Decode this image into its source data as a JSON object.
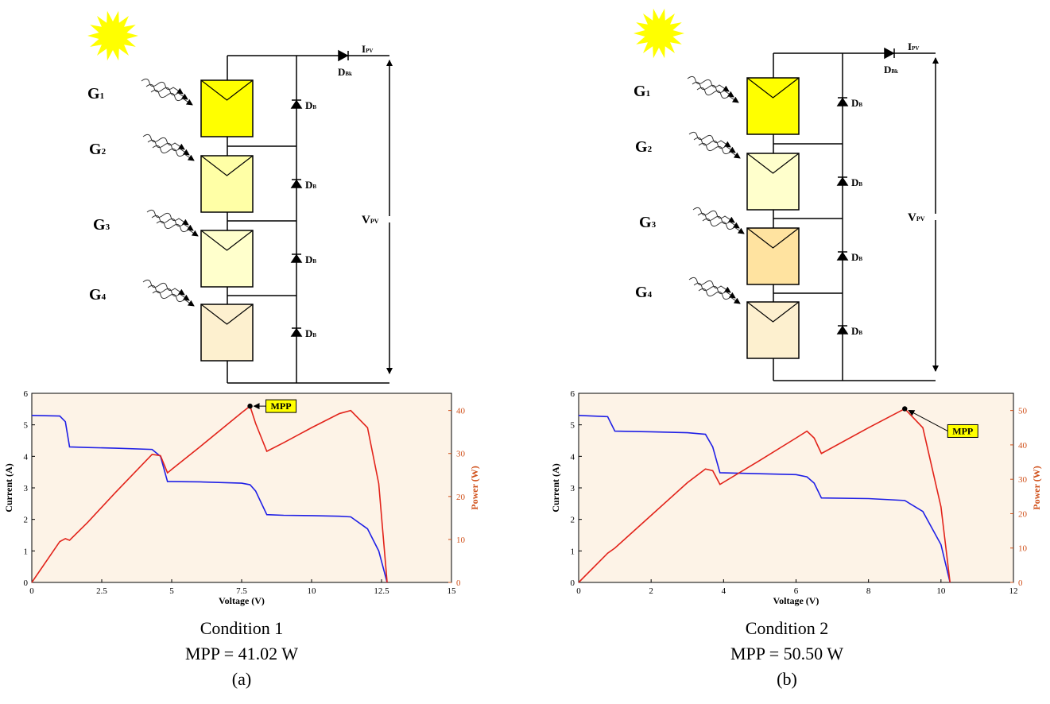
{
  "chart_data": [
    {
      "type": "line",
      "xlabel": "Voltage (V)",
      "ylabel": "Current (A)",
      "y2label": "Power (W)",
      "x": [
        0,
        1.0,
        1.2,
        1.35,
        2,
        3,
        4.3,
        4.6,
        4.85,
        5,
        6,
        7.5,
        7.8,
        8,
        8.4,
        9,
        10,
        11,
        11.4,
        12,
        12.4,
        12.7
      ],
      "series": [
        {
          "color": "#1f1fe6",
          "values": [
            5.3,
            5.28,
            5.1,
            4.3,
            4.28,
            4.26,
            4.22,
            4.0,
            3.2,
            3.2,
            3.19,
            3.15,
            3.1,
            2.9,
            2.15,
            2.13,
            2.12,
            2.1,
            2.08,
            1.7,
            1.0,
            0
          ]
        },
        {
          "color": "#e2231a",
          "axis": "y2",
          "values": [
            0,
            9.5,
            10.2,
            9.8,
            14,
            21,
            29.8,
            29.5,
            25.5,
            26.3,
            31.5,
            39.5,
            41.02,
            37,
            30.5,
            32.5,
            36,
            39.3,
            40,
            36,
            23,
            0
          ]
        }
      ],
      "xlim": [
        0,
        15
      ],
      "xticks": [
        0,
        2.5,
        5,
        7.5,
        10,
        12.5,
        15
      ],
      "ylim": [
        0,
        6
      ],
      "yticks": [
        0,
        1,
        2,
        3,
        4,
        5,
        6
      ],
      "y2lim": [
        0,
        44
      ],
      "y2ticks": [
        0,
        10,
        20,
        30,
        40
      ],
      "annotations": [
        {
          "text": "MPP",
          "x": 7.8,
          "y": 41.02
        }
      ]
    },
    {
      "type": "line",
      "xlabel": "Voltage (V)",
      "ylabel": "Current (A)",
      "y2label": "Power (W)",
      "x": [
        0,
        0.8,
        1.0,
        2,
        3,
        3.5,
        3.7,
        3.9,
        5,
        6,
        6.3,
        6.5,
        6.7,
        8,
        9,
        9.5,
        10,
        10.25
      ],
      "series": [
        {
          "color": "#1f1fe6",
          "values": [
            5.3,
            5.26,
            4.8,
            4.78,
            4.75,
            4.7,
            4.3,
            3.48,
            3.45,
            3.42,
            3.35,
            3.15,
            2.68,
            2.66,
            2.6,
            2.25,
            1.2,
            0
          ]
        },
        {
          "color": "#e2231a",
          "axis": "y2",
          "values": [
            0,
            8.5,
            10,
            19.5,
            29,
            33,
            32.5,
            28.5,
            35.5,
            42,
            44,
            42,
            37.5,
            45,
            50.5,
            45,
            22,
            0
          ]
        }
      ],
      "xlim": [
        0,
        12
      ],
      "xticks": [
        0,
        2,
        4,
        6,
        8,
        10,
        12
      ],
      "ylim": [
        0,
        6
      ],
      "yticks": [
        0,
        1,
        2,
        3,
        4,
        5,
        6
      ],
      "y2lim": [
        0,
        55
      ],
      "y2ticks": [
        0,
        10,
        20,
        30,
        40,
        50
      ],
      "annotations": [
        {
          "text": "MPP",
          "x": 9,
          "y": 50.5
        }
      ]
    }
  ],
  "panels": [
    {
      "diagram": {
        "gains": [
          {
            "base": "G",
            "sub": "1"
          },
          {
            "base": "G",
            "sub": "2"
          },
          {
            "base": "G",
            "sub": "3"
          },
          {
            "base": "G",
            "sub": "4"
          }
        ],
        "current": {
          "base": "I",
          "sub": "PV"
        },
        "blocking_diode": {
          "base": "D",
          "sub": "Bk"
        },
        "bypass_diodes": [
          {
            "base": "D",
            "sub": "B"
          },
          {
            "base": "D",
            "sub": "B"
          },
          {
            "base": "D",
            "sub": "B"
          },
          {
            "base": "D",
            "sub": "B"
          }
        ],
        "voltage": {
          "base": "V",
          "sub": "PV"
        }
      },
      "caption": {
        "condition": "Condition 1",
        "mpp": "MPP = 41.02 W",
        "label": "(a)"
      }
    },
    {
      "diagram": {
        "gains": [
          {
            "base": "G",
            "sub": "1"
          },
          {
            "base": "G",
            "sub": "2"
          },
          {
            "base": "G",
            "sub": "3"
          },
          {
            "base": "G",
            "sub": "4"
          }
        ],
        "current": {
          "base": "I",
          "sub": "PV"
        },
        "blocking_diode": {
          "base": "D",
          "sub": "Bk"
        },
        "bypass_diodes": [
          {
            "base": "D",
            "sub": "B"
          },
          {
            "base": "D",
            "sub": "B"
          },
          {
            "base": "D",
            "sub": "B"
          },
          {
            "base": "D",
            "sub": "B"
          }
        ],
        "voltage": {
          "base": "V",
          "sub": "PV"
        }
      },
      "caption": {
        "condition": "Condition 2",
        "mpp": "MPP = 50.50 W",
        "label": "(b)"
      }
    }
  ]
}
